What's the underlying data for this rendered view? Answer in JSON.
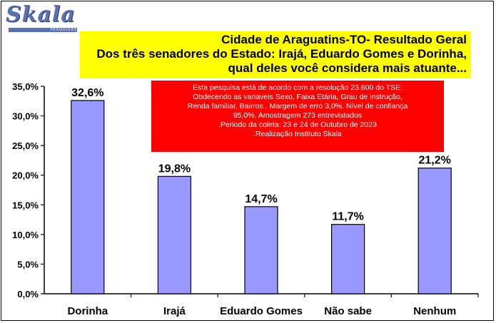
{
  "logo": {
    "name": "Skala",
    "tagline": "PESQUISAS"
  },
  "title_lines": [
    "Cidade de Araguatins-TO- Resultado Geral",
    "Dos três senadores do Estado: Irajá, Eduardo Gomes e Dorinha,",
    "qual deles você considera mais atuante..."
  ],
  "note_lines": [
    "Esta pesquisa está de acordo com a resolução 23.600 do TSE:",
    "Obdecendo as variaveis Sexo, Faixa Etária, Grau de instrução,",
    "Renda familiar, Bairros . Margem de erro 3,0%. Nível de confiança",
    "95,0%. Amostragem 273 entrevistados",
    ".Periodo da coleta: 23 e 24 de Outubro de 2023",
    ".Realização Instituto Skala"
  ],
  "colors": {
    "bar": "#9999ff",
    "title_bg": "#ffff00",
    "note_bg": "#ff0000"
  },
  "chart_data": {
    "type": "bar",
    "categories": [
      "Dorinha",
      "Irajá",
      "Eduardo Gomes",
      "Não sabe",
      "Nenhum"
    ],
    "values": [
      32.6,
      19.8,
      14.7,
      11.7,
      21.2
    ],
    "value_labels": [
      "32,6%",
      "19,8%",
      "14,7%",
      "11,7%",
      "21,2%"
    ],
    "ylim": [
      0,
      35
    ],
    "yticks": [
      0,
      5,
      10,
      15,
      20,
      25,
      30,
      35
    ],
    "ytick_labels": [
      "0,0%",
      "5,0%",
      "10,0%",
      "15,0%",
      "20,0%",
      "25,0%",
      "30,0%",
      "35,0%"
    ],
    "grid": false,
    "xlabel": "",
    "ylabel": ""
  }
}
